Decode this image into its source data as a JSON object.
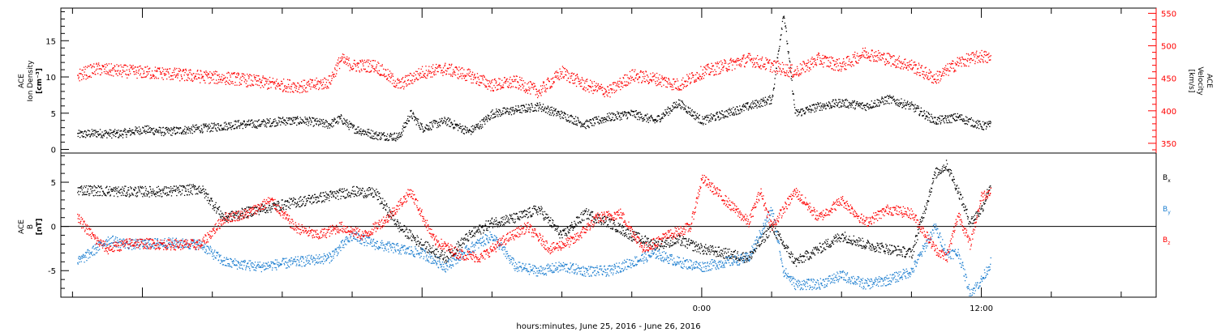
{
  "chart_data": [
    {
      "type": "scatter",
      "panel": "top",
      "left_axis_label": [
        "ACE",
        "Ion Density",
        "[cm⁻³]"
      ],
      "right_axis_label": [
        "ACE",
        "Velocity",
        "[km/s]"
      ],
      "y_left_ticks": [
        "0",
        "5",
        "10",
        "15"
      ],
      "y_left_range": [
        -0.5,
        19.5
      ],
      "y_right_ticks": [
        "350",
        "400",
        "450",
        "500",
        "550"
      ],
      "y_right_range": [
        335,
        558
      ],
      "series": [
        {
          "axis": "left",
          "color": "#000000",
          "points": [
            [
              -26.8,
              2.1
            ],
            [
              -26.0,
              2.3
            ],
            [
              -25.0,
              2.2
            ],
            [
              -24.0,
              2.8
            ],
            [
              -23.0,
              2.5
            ],
            [
              -22.0,
              2.8
            ],
            [
              -21.0,
              3.1
            ],
            [
              -20.0,
              3.5
            ],
            [
              -19.0,
              3.6
            ],
            [
              -18.0,
              4.0
            ],
            [
              -17.0,
              4.0
            ],
            [
              -16.0,
              3.5
            ],
            [
              -15.5,
              4.3
            ],
            [
              -15.0,
              3.0
            ],
            [
              -14.0,
              2.0
            ],
            [
              -13.0,
              1.8
            ],
            [
              -12.5,
              5.0
            ],
            [
              -12.0,
              3.0
            ],
            [
              -11.0,
              4.0
            ],
            [
              -10.0,
              2.5
            ],
            [
              -9.5,
              3.5
            ],
            [
              -9.0,
              5.0
            ],
            [
              -8.0,
              5.5
            ],
            [
              -7.0,
              6.0
            ],
            [
              -6.0,
              4.8
            ],
            [
              -5.0,
              3.5
            ],
            [
              -4.0,
              4.5
            ],
            [
              -3.0,
              5.0
            ],
            [
              -2.0,
              4.0
            ],
            [
              -1.0,
              6.5
            ],
            [
              0.0,
              4.0
            ],
            [
              1.0,
              5.0
            ],
            [
              2.0,
              6.0
            ],
            [
              3.0,
              7.0
            ],
            [
              3.5,
              19.0
            ],
            [
              4.0,
              5.0
            ],
            [
              5.0,
              6.0
            ],
            [
              6.0,
              6.5
            ],
            [
              7.0,
              6.0
            ],
            [
              8.0,
              7.0
            ],
            [
              9.0,
              6.0
            ],
            [
              10.0,
              4.0
            ],
            [
              11.0,
              4.5
            ],
            [
              12.0,
              3.3
            ],
            [
              12.4,
              3.4
            ]
          ]
        },
        {
          "axis": "right",
          "color": "#ff0000",
          "points": [
            [
              -26.8,
              455
            ],
            [
              -26.0,
              465
            ],
            [
              -25.0,
              462
            ],
            [
              -24.0,
              460
            ],
            [
              -23.0,
              458
            ],
            [
              -22.0,
              455
            ],
            [
              -21.0,
              452
            ],
            [
              -20.0,
              450
            ],
            [
              -19.0,
              445
            ],
            [
              -18.0,
              440
            ],
            [
              -17.0,
              438
            ],
            [
              -16.0,
              445
            ],
            [
              -15.5,
              480
            ],
            [
              -15.0,
              470
            ],
            [
              -14.0,
              470
            ],
            [
              -13.0,
              440
            ],
            [
              -12.0,
              460
            ],
            [
              -11.0,
              465
            ],
            [
              -10.0,
              455
            ],
            [
              -9.0,
              440
            ],
            [
              -8.0,
              445
            ],
            [
              -7.0,
              430
            ],
            [
              -6.0,
              460
            ],
            [
              -5.0,
              440
            ],
            [
              -4.0,
              430
            ],
            [
              -3.0,
              455
            ],
            [
              -2.0,
              450
            ],
            [
              -1.0,
              440
            ],
            [
              0.0,
              460
            ],
            [
              1.0,
              470
            ],
            [
              2.0,
              480
            ],
            [
              3.0,
              470
            ],
            [
              4.0,
              460
            ],
            [
              5.0,
              480
            ],
            [
              6.0,
              470
            ],
            [
              7.0,
              490
            ],
            [
              8.0,
              480
            ],
            [
              9.0,
              470
            ],
            [
              10.0,
              450
            ],
            [
              11.0,
              475
            ],
            [
              12.0,
              485
            ],
            [
              12.4,
              480
            ]
          ]
        }
      ]
    },
    {
      "type": "scatter",
      "panel": "bottom",
      "left_axis_label": [
        "ACE",
        "B",
        "[nT]"
      ],
      "y_ticks": [
        "-5",
        "0",
        "5"
      ],
      "y_range": [
        -8.0,
        8.3
      ],
      "x_ticks": [
        "0:00",
        "12:00"
      ],
      "x_range_hours": [
        -27.5,
        19.5
      ],
      "xlabel": "hours:minutes, June 25, 2016 - June 26, 2016",
      "legend": [
        {
          "label": "B",
          "sub": "x",
          "color": "#000000"
        },
        {
          "label": "B",
          "sub": "y",
          "color": "#1e7fd0"
        },
        {
          "label": "B",
          "sub": "z",
          "color": "#ff0000"
        }
      ],
      "series": [
        {
          "name": "Bx",
          "color": "#000000",
          "points": [
            [
              -26.8,
              4.2
            ],
            [
              -25.0,
              4.0
            ],
            [
              -23.0,
              4.0
            ],
            [
              -21.5,
              4.3
            ],
            [
              -20.5,
              1.0
            ],
            [
              -19.0,
              2.0
            ],
            [
              -18.0,
              2.5
            ],
            [
              -17.0,
              3.0
            ],
            [
              -16.0,
              3.5
            ],
            [
              -15.0,
              4.0
            ],
            [
              -14.0,
              3.8
            ],
            [
              -13.0,
              0.0
            ],
            [
              -12.0,
              -2.0
            ],
            [
              -11.0,
              -3.5
            ],
            [
              -10.0,
              -1.0
            ],
            [
              -9.0,
              0.5
            ],
            [
              -8.0,
              1.0
            ],
            [
              -7.0,
              2.0
            ],
            [
              -6.0,
              -1.0
            ],
            [
              -5.0,
              1.5
            ],
            [
              -4.0,
              0.5
            ],
            [
              -3.0,
              -1.0
            ],
            [
              -2.0,
              -2.0
            ],
            [
              -1.0,
              -1.5
            ],
            [
              0.0,
              -2.5
            ],
            [
              1.0,
              -3.0
            ],
            [
              2.0,
              -3.5
            ],
            [
              3.0,
              0.0
            ],
            [
              4.0,
              -4.0
            ],
            [
              5.0,
              -2.5
            ],
            [
              6.0,
              -1.0
            ],
            [
              7.0,
              -2.0
            ],
            [
              8.0,
              -2.5
            ],
            [
              9.0,
              -3.0
            ],
            [
              10.0,
              6.0
            ],
            [
              10.5,
              7.0
            ],
            [
              11.0,
              4.0
            ],
            [
              11.5,
              0.5
            ],
            [
              12.0,
              2.0
            ],
            [
              12.4,
              5.0
            ]
          ]
        },
        {
          "name": "By",
          "color": "#1e7fd0",
          "points": [
            [
              -26.8,
              -4.0
            ],
            [
              -25.5,
              -1.5
            ],
            [
              -24.5,
              -2.0
            ],
            [
              -23.0,
              -1.8
            ],
            [
              -21.5,
              -2.0
            ],
            [
              -20.5,
              -4.0
            ],
            [
              -19.0,
              -4.5
            ],
            [
              -17.5,
              -4.0
            ],
            [
              -16.0,
              -3.5
            ],
            [
              -15.0,
              -1.0
            ],
            [
              -14.0,
              -2.0
            ],
            [
              -13.0,
              -2.5
            ],
            [
              -12.0,
              -3.0
            ],
            [
              -11.0,
              -4.5
            ],
            [
              -10.0,
              -2.5
            ],
            [
              -9.0,
              -1.0
            ],
            [
              -8.0,
              -4.5
            ],
            [
              -7.0,
              -5.0
            ],
            [
              -6.0,
              -4.5
            ],
            [
              -5.0,
              -5.0
            ],
            [
              -4.0,
              -5.0
            ],
            [
              -3.0,
              -4.0
            ],
            [
              -2.0,
              -3.0
            ],
            [
              -1.0,
              -4.0
            ],
            [
              0.0,
              -4.5
            ],
            [
              1.0,
              -4.0
            ],
            [
              2.0,
              -3.5
            ],
            [
              3.0,
              2.0
            ],
            [
              3.5,
              -5.0
            ],
            [
              4.0,
              -6.5
            ],
            [
              5.0,
              -6.5
            ],
            [
              6.0,
              -5.5
            ],
            [
              7.0,
              -6.5
            ],
            [
              8.0,
              -6.0
            ],
            [
              9.0,
              -5.0
            ],
            [
              10.0,
              0.0
            ],
            [
              10.5,
              -3.0
            ],
            [
              11.0,
              -3.0
            ],
            [
              11.5,
              -7.5
            ],
            [
              12.0,
              -6.0
            ],
            [
              12.4,
              -4.0
            ]
          ]
        },
        {
          "name": "Bz",
          "color": "#ff0000",
          "points": [
            [
              -26.8,
              1.0
            ],
            [
              -26.0,
              -1.5
            ],
            [
              -25.5,
              -2.5
            ],
            [
              -24.5,
              -1.8
            ],
            [
              -23.0,
              -2.0
            ],
            [
              -21.5,
              -2.0
            ],
            [
              -20.5,
              1.0
            ],
            [
              -19.5,
              1.5
            ],
            [
              -18.5,
              3.0
            ],
            [
              -17.5,
              0.0
            ],
            [
              -16.5,
              -1.0
            ],
            [
              -15.5,
              0.0
            ],
            [
              -14.5,
              -1.0
            ],
            [
              -13.5,
              1.0
            ],
            [
              -12.5,
              4.0
            ],
            [
              -11.5,
              -1.5
            ],
            [
              -10.5,
              -3.0
            ],
            [
              -9.5,
              -3.5
            ],
            [
              -8.5,
              -1.5
            ],
            [
              -7.5,
              0.0
            ],
            [
              -6.5,
              -2.5
            ],
            [
              -5.5,
              -1.5
            ],
            [
              -4.5,
              1.0
            ],
            [
              -3.5,
              1.5
            ],
            [
              -2.5,
              -2.5
            ],
            [
              -1.5,
              -1.0
            ],
            [
              -0.5,
              0.0
            ],
            [
              0.0,
              5.5
            ],
            [
              1.0,
              3.0
            ],
            [
              2.0,
              0.5
            ],
            [
              2.5,
              4.0
            ],
            [
              3.0,
              0.0
            ],
            [
              4.0,
              4.0
            ],
            [
              5.0,
              1.0
            ],
            [
              6.0,
              3.0
            ],
            [
              7.0,
              0.5
            ],
            [
              8.0,
              2.0
            ],
            [
              9.0,
              1.5
            ],
            [
              10.0,
              -2.5
            ],
            [
              10.5,
              -3.5
            ],
            [
              11.0,
              1.5
            ],
            [
              11.5,
              -2.0
            ],
            [
              12.0,
              3.5
            ],
            [
              12.4,
              4.0
            ]
          ]
        }
      ]
    }
  ]
}
